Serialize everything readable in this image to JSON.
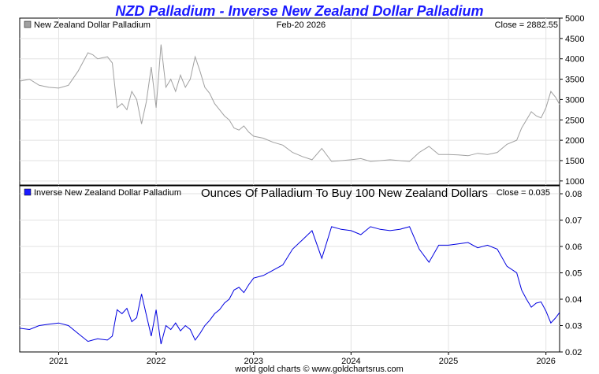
{
  "title": "NZD Palladium - Inverse New Zealand Dollar Palladium",
  "footer": "world gold charts © www.goldchartsrus.com",
  "chart_data": [
    {
      "type": "line",
      "panel": "top",
      "legend": "New Zealand Dollar Palladium",
      "date_label": "Feb-20  2026",
      "close_label": "Close = 2882.55",
      "color": "#a0a0a0",
      "legend_swatch_color": "#a0a0a0",
      "ylim": [
        900,
        5000
      ],
      "yticks": [
        1000,
        1500,
        2000,
        2500,
        3000,
        3500,
        4000,
        4500,
        5000
      ],
      "x": [
        2020.6,
        2020.7,
        2020.8,
        2020.9,
        2021.0,
        2021.1,
        2021.2,
        2021.3,
        2021.35,
        2021.4,
        2021.5,
        2021.55,
        2021.6,
        2021.65,
        2021.7,
        2021.75,
        2021.8,
        2021.85,
        2021.9,
        2021.95,
        2022.0,
        2022.05,
        2022.1,
        2022.15,
        2022.2,
        2022.25,
        2022.3,
        2022.35,
        2022.4,
        2022.45,
        2022.5,
        2022.55,
        2022.6,
        2022.65,
        2022.7,
        2022.75,
        2022.8,
        2022.85,
        2022.9,
        2022.95,
        2023.0,
        2023.1,
        2023.2,
        2023.3,
        2023.4,
        2023.5,
        2023.6,
        2023.7,
        2023.8,
        2023.9,
        2024.0,
        2024.1,
        2024.2,
        2024.3,
        2024.4,
        2024.5,
        2024.6,
        2024.7,
        2024.8,
        2024.9,
        2025.0,
        2025.1,
        2025.2,
        2025.3,
        2025.4,
        2025.5,
        2025.6,
        2025.7,
        2025.75,
        2025.8,
        2025.85,
        2025.9,
        2025.95,
        2026.0,
        2026.05,
        2026.1,
        2026.14
      ],
      "y": [
        3450,
        3500,
        3350,
        3300,
        3280,
        3350,
        3700,
        4150,
        4100,
        4000,
        4050,
        3900,
        2800,
        2900,
        2750,
        3200,
        3000,
        2400,
        2950,
        3800,
        2800,
        4350,
        3300,
        3500,
        3200,
        3600,
        3300,
        3500,
        4050,
        3700,
        3300,
        3150,
        2900,
        2750,
        2600,
        2500,
        2300,
        2250,
        2350,
        2200,
        2100,
        2050,
        1950,
        1880,
        1700,
        1600,
        1520,
        1800,
        1480,
        1500,
        1520,
        1550,
        1480,
        1500,
        1520,
        1500,
        1480,
        1700,
        1850,
        1650,
        1650,
        1640,
        1620,
        1680,
        1650,
        1700,
        1900,
        2000,
        2300,
        2500,
        2700,
        2600,
        2550,
        2800,
        3200,
        3050,
        2880
      ]
    },
    {
      "type": "line",
      "panel": "bottom",
      "legend": "Inverse New Zealand Dollar Palladium",
      "subtitle": "Ounces Of Palladium To Buy 100 New Zealand Dollars",
      "close_label": "Close = 0.035",
      "color": "#0000e0",
      "legend_swatch_color": "#1a1aff",
      "ylim": [
        0.02,
        0.083
      ],
      "yticks": [
        0.02,
        0.03,
        0.04,
        0.05,
        0.06,
        0.07,
        0.08
      ],
      "x": [
        2020.6,
        2020.7,
        2020.8,
        2020.9,
        2021.0,
        2021.1,
        2021.2,
        2021.3,
        2021.35,
        2021.4,
        2021.5,
        2021.55,
        2021.6,
        2021.65,
        2021.7,
        2021.75,
        2021.8,
        2021.85,
        2021.9,
        2021.95,
        2022.0,
        2022.05,
        2022.1,
        2022.15,
        2022.2,
        2022.25,
        2022.3,
        2022.35,
        2022.4,
        2022.45,
        2022.5,
        2022.55,
        2022.6,
        2022.65,
        2022.7,
        2022.75,
        2022.8,
        2022.85,
        2022.9,
        2022.95,
        2023.0,
        2023.1,
        2023.2,
        2023.3,
        2023.4,
        2023.5,
        2023.6,
        2023.7,
        2023.8,
        2023.9,
        2024.0,
        2024.1,
        2024.2,
        2024.3,
        2024.4,
        2024.5,
        2024.6,
        2024.7,
        2024.8,
        2024.9,
        2025.0,
        2025.1,
        2025.2,
        2025.3,
        2025.4,
        2025.5,
        2025.6,
        2025.7,
        2025.75,
        2025.8,
        2025.85,
        2025.9,
        2025.95,
        2026.0,
        2026.05,
        2026.1,
        2026.14
      ],
      "y": [
        0.029,
        0.0285,
        0.03,
        0.0305,
        0.031,
        0.03,
        0.027,
        0.024,
        0.0245,
        0.025,
        0.0245,
        0.026,
        0.036,
        0.0345,
        0.0365,
        0.0315,
        0.033,
        0.042,
        0.034,
        0.026,
        0.036,
        0.023,
        0.03,
        0.0285,
        0.031,
        0.028,
        0.03,
        0.0285,
        0.0245,
        0.027,
        0.03,
        0.032,
        0.0345,
        0.036,
        0.0385,
        0.04,
        0.0435,
        0.0445,
        0.0425,
        0.0455,
        0.048,
        0.049,
        0.051,
        0.053,
        0.059,
        0.0625,
        0.066,
        0.0555,
        0.0675,
        0.0665,
        0.066,
        0.0645,
        0.0675,
        0.0665,
        0.066,
        0.0665,
        0.0675,
        0.059,
        0.054,
        0.0605,
        0.0605,
        0.061,
        0.0615,
        0.0595,
        0.0605,
        0.059,
        0.0525,
        0.05,
        0.0435,
        0.04,
        0.037,
        0.0385,
        0.039,
        0.0355,
        0.031,
        0.033,
        0.035
      ]
    }
  ],
  "x_axis": {
    "xlim": [
      2020.6,
      2026.14
    ],
    "ticks": [
      2021,
      2022,
      2023,
      2024,
      2025,
      2026
    ],
    "tick_labels": [
      "2021",
      "2022",
      "2023",
      "2024",
      "2025",
      "2026"
    ]
  }
}
